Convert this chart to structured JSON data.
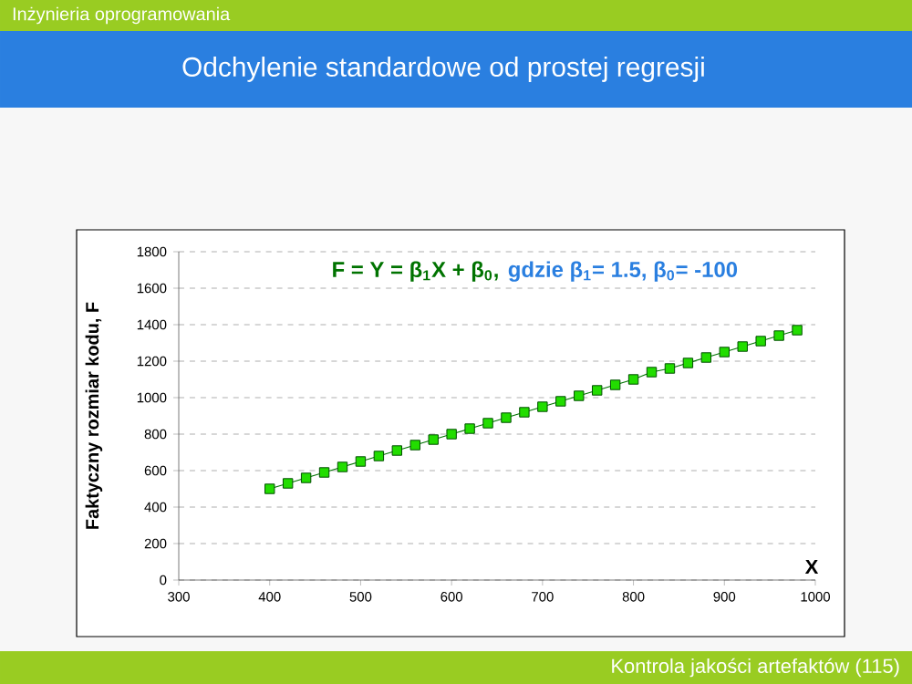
{
  "chart_data": {
    "type": "line",
    "title": "Odchylenie standardowe od prostej regresji",
    "xlabel": "X",
    "ylabel": "Faktyczny rozmiar kodu, F",
    "annotations": [
      "Inżynieria oprogramowania",
      "F = Y = β$_{1}$X + β$_{0}$,",
      "gdzie β$_{1}$= 1.5, β$_{0}$= -100",
      "Kontrola jakości artefaktów (115)"
    ],
    "x": [
      400,
      420,
      440,
      460,
      480,
      500,
      520,
      540,
      560,
      580,
      600,
      620,
      640,
      660,
      680,
      700,
      720,
      740,
      760,
      780,
      800,
      820,
      840,
      860,
      880,
      900,
      920,
      940,
      960,
      980
    ],
    "series": [
      {
        "color": "#22dd00",
        "values": [
          500,
          530,
          560,
          590,
          620,
          650,
          680,
          710,
          740,
          770,
          800,
          830,
          860,
          890,
          920,
          950,
          980,
          1010,
          1040,
          1070,
          1100,
          1140,
          1160,
          1190,
          1220,
          1250,
          1280,
          1310,
          1340,
          1370
        ]
      }
    ],
    "xlim": [
      300,
      1000
    ],
    "ylim": [
      0,
      1800
    ],
    "xticks": [
      300,
      400,
      500,
      600,
      700,
      800,
      900,
      1000
    ],
    "yticks": [
      0,
      200,
      400,
      600,
      800,
      1000,
      1200,
      1400,
      1600,
      1800
    ],
    "grid": "y",
    "marker": "square",
    "line_style": "solid"
  }
}
